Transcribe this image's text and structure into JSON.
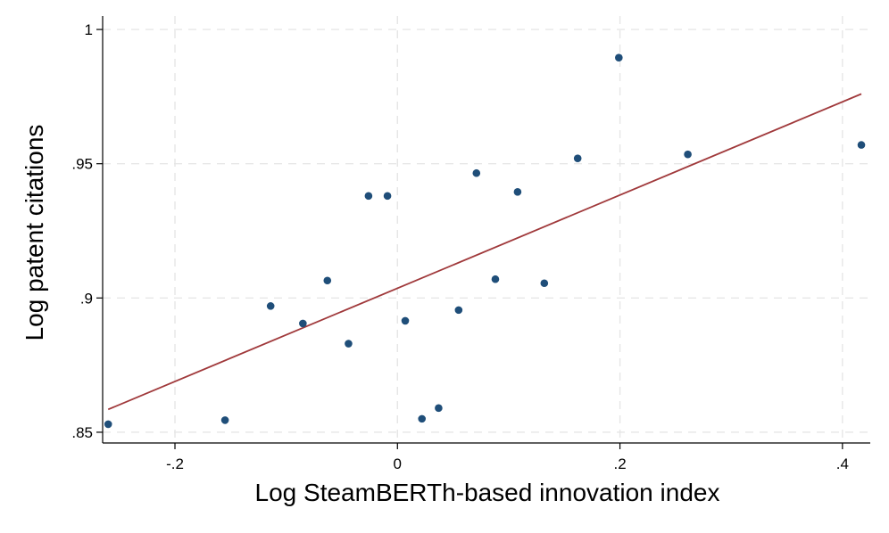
{
  "chart_data": {
    "type": "scatter",
    "title": "",
    "xlabel": "Log SteamBERTh-based innovation index",
    "ylabel": "Log patent citations",
    "xlim": [
      -0.265,
      0.425
    ],
    "ylim": [
      0.846,
      1.005
    ],
    "x_ticks": [
      {
        "value": -0.2,
        "label": "-.2"
      },
      {
        "value": 0,
        "label": "0"
      },
      {
        "value": 0.2,
        "label": ".2"
      },
      {
        "value": 0.4,
        "label": ".4"
      }
    ],
    "y_ticks": [
      {
        "value": 0.85,
        "label": ".85"
      },
      {
        "value": 0.9,
        "label": ".9"
      },
      {
        "value": 0.95,
        "label": ".95"
      },
      {
        "value": 1.0,
        "label": "1"
      }
    ],
    "grid": true,
    "legend": "none",
    "colors": {
      "points": "#1f4e79",
      "fit_line": "#a0393b",
      "grid": "#e6e6e6"
    },
    "series": [
      {
        "kind": "points",
        "x": [
          -0.26,
          -0.155,
          -0.114,
          -0.085,
          -0.063,
          -0.044,
          -0.026,
          -0.009,
          0.007,
          0.022,
          0.037,
          0.055,
          0.071,
          0.088,
          0.108,
          0.132,
          0.162,
          0.199,
          0.261,
          0.417
        ],
        "y": [
          0.853,
          0.8545,
          0.897,
          0.8905,
          0.9065,
          0.883,
          0.938,
          0.938,
          0.8915,
          0.855,
          0.859,
          0.8955,
          0.9465,
          0.907,
          0.9395,
          0.9055,
          0.952,
          0.9895,
          0.9535,
          0.957
        ]
      },
      {
        "kind": "fitted-line",
        "x": [
          -0.26,
          0.417
        ],
        "y": [
          0.8585,
          0.976
        ]
      }
    ]
  }
}
